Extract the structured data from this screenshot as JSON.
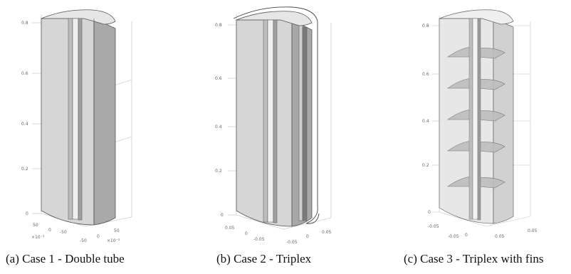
{
  "figures": [
    {
      "caption": "(a) Case 1 - Double tube",
      "yticks": [
        "0.8",
        "0.6",
        "0.4",
        "0.2",
        "0"
      ],
      "base_ticks": [
        "50",
        "0",
        "×10⁻³",
        "-50",
        "-50",
        "0",
        "50",
        "×10⁻³"
      ]
    },
    {
      "caption": "(b) Case 2 - Triplex",
      "yticks": [
        "0.8",
        "0.6",
        "0.4",
        "0.2",
        "0"
      ],
      "base_ticks": [
        "0.05",
        "0",
        "-0.05",
        "0.05",
        "0",
        "-0.05"
      ]
    },
    {
      "caption": "(c) Case 3 - Triplex with fins",
      "yticks": [
        "0.8",
        "0.6",
        "0.4",
        "0.2",
        "0"
      ],
      "base_ticks": [
        "-0.05",
        "0.05",
        "-0.05",
        "0",
        "0.05"
      ]
    }
  ]
}
